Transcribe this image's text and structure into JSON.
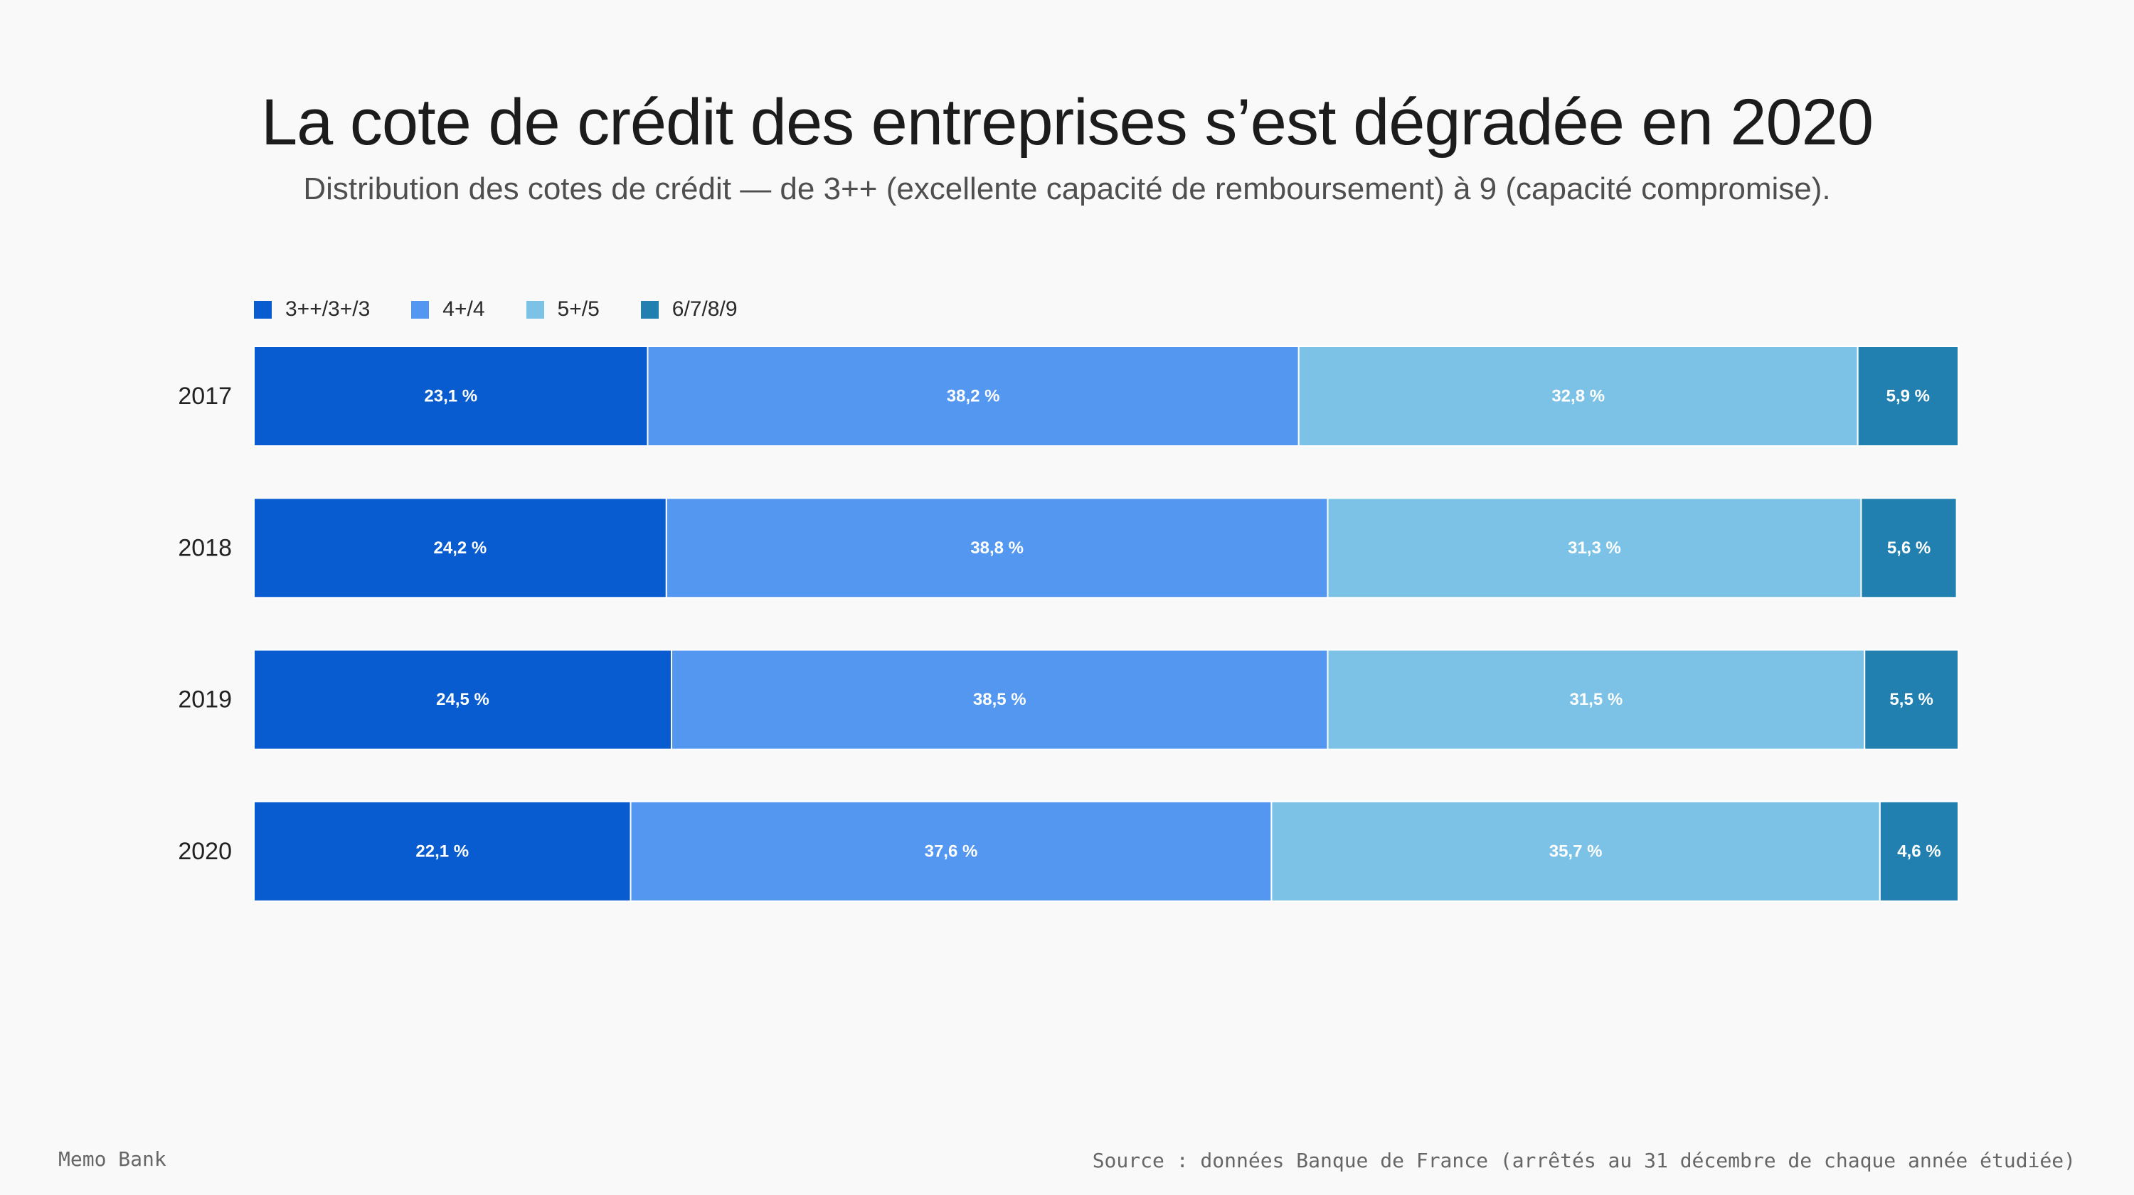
{
  "title": "La cote de crédit des entreprises s’est dégradée en 2020",
  "subtitle": "Distribution des cotes de crédit — de 3++ (excellente capacité de remboursement) à 9 (capacité compromise).",
  "footer": {
    "brand": "Memo Bank",
    "source": "Source : données Banque de France (arrêtés au 31 décembre de chaque année étudiée)"
  },
  "colors": {
    "series_1": "#095cd0",
    "series_2": "#5397f0",
    "series_3": "#7cc2e6",
    "series_4": "#2180b0"
  },
  "chart_data": {
    "type": "bar",
    "orientation": "horizontal",
    "stacked": true,
    "categories": [
      "2017",
      "2018",
      "2019",
      "2020"
    ],
    "series": [
      {
        "name": "3++/3+/3",
        "values": [
          23.1,
          24.2,
          24.5,
          22.1
        ],
        "labels": [
          "23,1 %",
          "24,2 %",
          "24,5 %",
          "22,1 %"
        ],
        "color": "#095cd0"
      },
      {
        "name": "4+/4",
        "values": [
          38.2,
          38.8,
          38.5,
          37.6
        ],
        "labels": [
          "38,2 %",
          "38,8 %",
          "38,5 %",
          "37,6 %"
        ],
        "color": "#5397f0"
      },
      {
        "name": "5+/5",
        "values": [
          32.8,
          31.3,
          31.5,
          35.7
        ],
        "labels": [
          "32,8 %",
          "31,3 %",
          "31,5 %",
          "35,7 %"
        ],
        "color": "#7cc2e6"
      },
      {
        "name": "6/7/8/9",
        "values": [
          5.9,
          5.6,
          5.5,
          4.6
        ],
        "labels": [
          "5,9 %",
          "5,6 %",
          "5,5 %",
          "4,6 %"
        ],
        "color": "#2180b0"
      }
    ],
    "xlim": [
      0,
      100
    ],
    "legend": "top-left",
    "grid": false
  }
}
